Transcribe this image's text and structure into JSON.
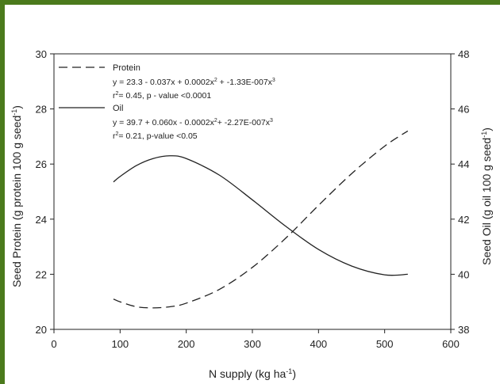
{
  "chart_data": {
    "type": "line",
    "x_label": "N supply (kg ha",
    "x_label_sup": "-1",
    "x_label_end": ")",
    "y_left_label": "Seed Protein (g protein 100 g seed",
    "y_left_label_sup": "-1",
    "y_left_label_end": ")",
    "y_right_label": "Seed Oil (g oil 100 g seed",
    "y_right_label_sup": "-1",
    "y_right_label_end": ")",
    "xlim": [
      0,
      600
    ],
    "y_left_lim": [
      20,
      30
    ],
    "y_right_lim": [
      38,
      48
    ],
    "x_ticks": [
      "0",
      "100",
      "200",
      "300",
      "400",
      "500",
      "600"
    ],
    "y_left_ticks": [
      "20",
      "22",
      "24",
      "26",
      "28",
      "30"
    ],
    "y_right_ticks": [
      "38",
      "40",
      "42",
      "44",
      "46",
      "48"
    ],
    "grid": false,
    "legend_position": "top-left",
    "series": [
      {
        "name": "Protein",
        "axis": "left",
        "style": "dashed",
        "x": [
          90,
          100,
          125,
          150,
          175,
          200,
          250,
          300,
          350,
          400,
          450,
          500,
          535
        ],
        "y": [
          21.1,
          21.0,
          20.82,
          20.78,
          20.82,
          20.95,
          21.45,
          22.25,
          23.3,
          24.5,
          25.65,
          26.65,
          27.2
        ],
        "equation_parts": [
          "y = 23.3 - 0.037x + 0.0002x",
          "2",
          " + -1.33E-007x",
          "3"
        ],
        "stats_parts": [
          "r",
          "2",
          "= 0.45, p - value <0.0001"
        ]
      },
      {
        "name": "Oil",
        "axis": "right",
        "style": "solid",
        "x": [
          90,
          100,
          125,
          150,
          175,
          200,
          250,
          300,
          350,
          400,
          450,
          500,
          535
        ],
        "y": [
          43.35,
          43.55,
          43.95,
          44.2,
          44.3,
          44.2,
          43.6,
          42.7,
          41.75,
          40.9,
          40.3,
          39.98,
          40.0
        ],
        "equation_parts": [
          "y = 39.7 + 0.060x - 0.0002x",
          "2",
          "+ -2.27E-007x",
          "3"
        ],
        "stats_parts": [
          "r",
          "2",
          "= 0.21, p-value <0.05"
        ]
      }
    ]
  }
}
